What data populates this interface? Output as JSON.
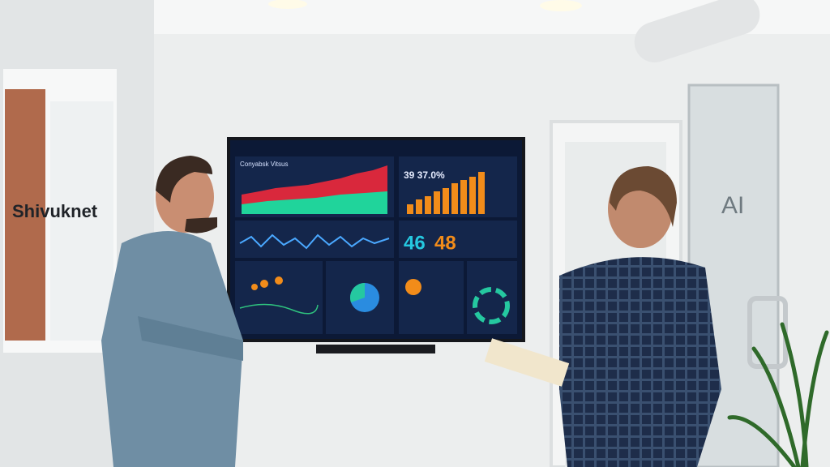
{
  "window_sign": "Shivuknet",
  "door_sign": "AI",
  "dashboard": {
    "title": "Conyabsk Vitsus",
    "headline": "39 37.0%",
    "kpis": [
      "46",
      "48"
    ]
  }
}
